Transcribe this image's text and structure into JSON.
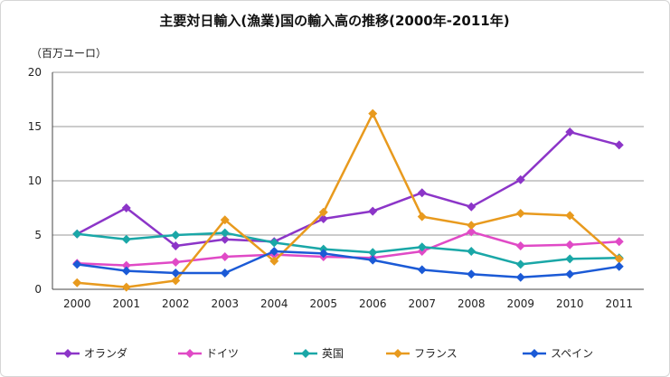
{
  "chart_data": {
    "type": "line",
    "title": "主要対日輸入(漁業)国の輸入高の推移(2000年-2011年)",
    "unit_label": "（百万ユーロ）",
    "xlabel": "",
    "ylabel": "",
    "x": [
      "2000",
      "2001",
      "2002",
      "2003",
      "2004",
      "2005",
      "2006",
      "2007",
      "2008",
      "2009",
      "2010",
      "2011"
    ],
    "ylim": [
      0,
      20
    ],
    "yticks": [
      0,
      5,
      10,
      15,
      20
    ],
    "grid": true,
    "legend_position": "bottom",
    "series": [
      {
        "name": "オランダ",
        "color": "#8c35c8",
        "values": [
          5.1,
          7.5,
          4.0,
          4.6,
          4.4,
          6.5,
          7.2,
          8.9,
          7.6,
          10.1,
          14.5,
          13.3
        ]
      },
      {
        "name": "ドイツ",
        "color": "#e04ac6",
        "values": [
          2.4,
          2.2,
          2.5,
          3.0,
          3.2,
          3.0,
          2.9,
          3.5,
          5.3,
          4.0,
          4.1,
          4.4
        ]
      },
      {
        "name": "英国",
        "color": "#1aa7a7",
        "values": [
          5.1,
          4.6,
          5.0,
          5.2,
          4.3,
          3.7,
          3.4,
          3.9,
          3.5,
          2.3,
          2.8,
          2.9
        ]
      },
      {
        "name": "フランス",
        "color": "#e89a1e",
        "values": [
          0.6,
          0.2,
          0.8,
          6.4,
          2.6,
          7.1,
          16.2,
          6.7,
          5.9,
          7.0,
          6.8,
          2.8
        ]
      },
      {
        "name": "スペイン",
        "color": "#1b5ad6",
        "values": [
          2.3,
          1.7,
          1.5,
          1.5,
          3.5,
          3.3,
          2.7,
          1.8,
          1.4,
          1.1,
          1.4,
          2.1
        ]
      }
    ]
  }
}
